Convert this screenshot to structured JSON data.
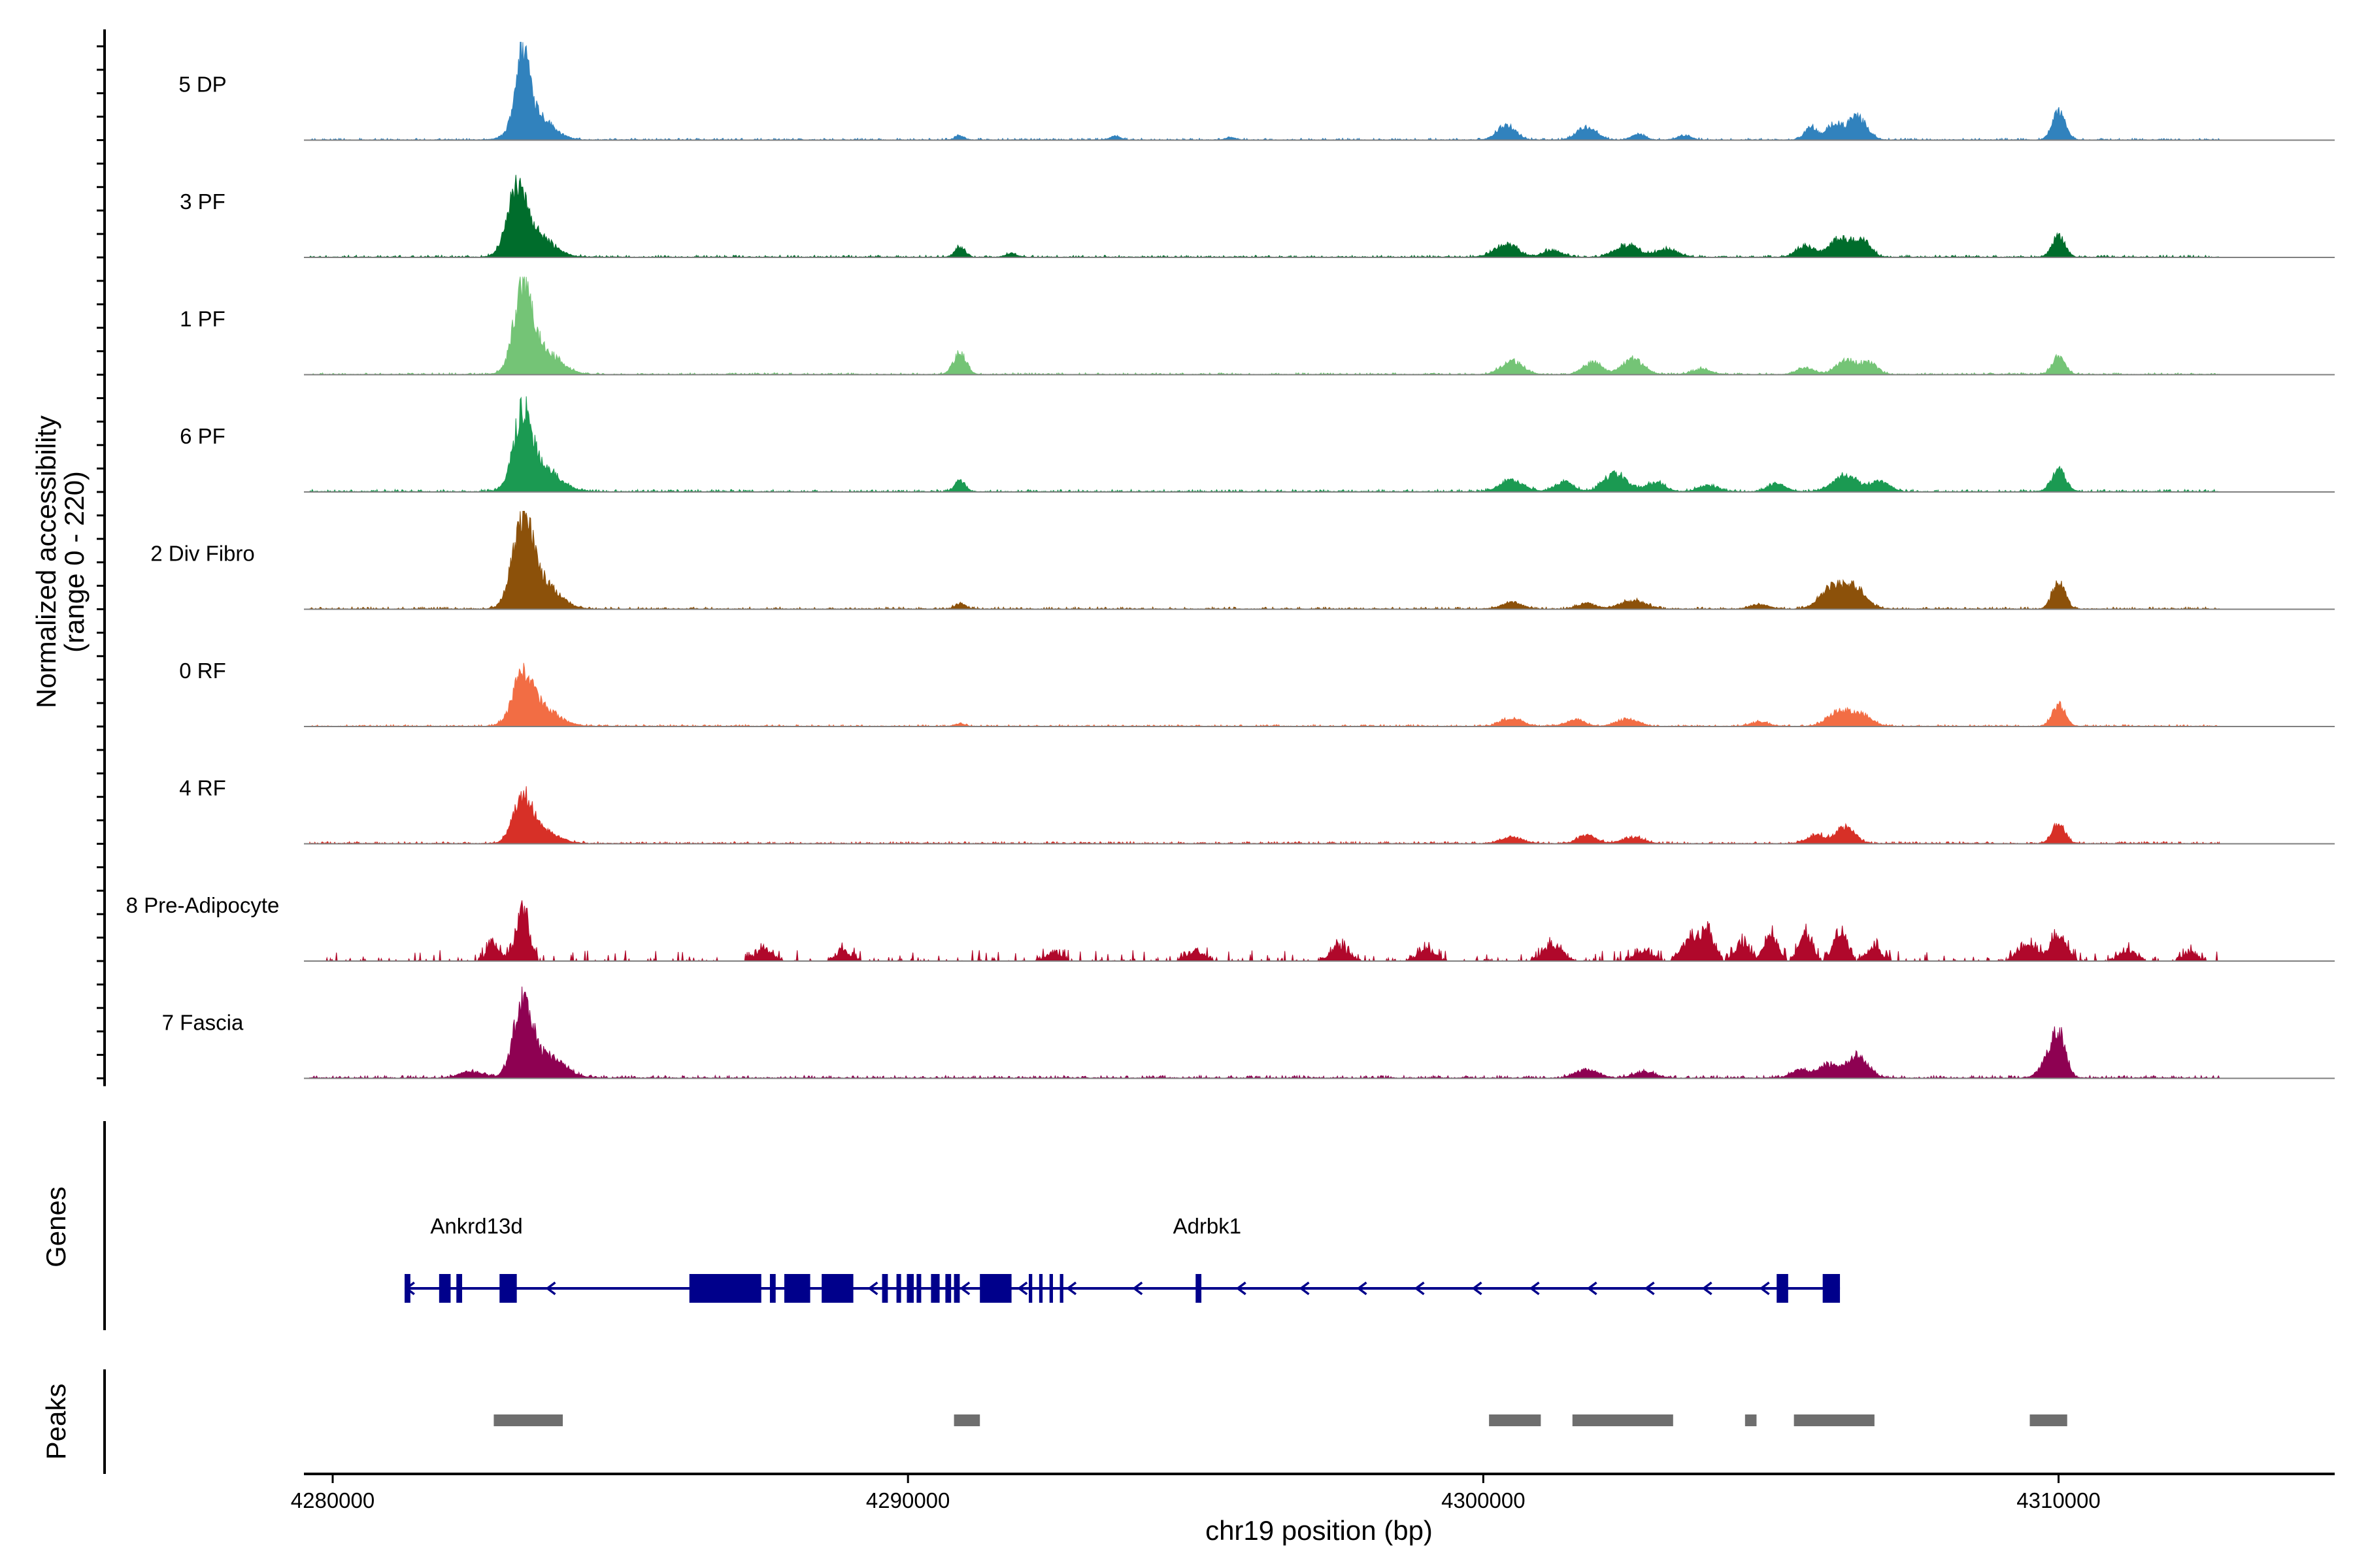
{
  "chart_data": {
    "type": "area",
    "title": "",
    "y_axis_label_line1": "Normalized accessibility",
    "y_axis_label_line2": "(range 0 - 220)",
    "y_range": [
      0,
      220
    ],
    "x_axis_label": "chr19 position (bp)",
    "x_range": [
      4279500,
      4314800
    ],
    "x_ticks": [
      {
        "value": 4280000,
        "label": "4280000"
      },
      {
        "value": 4290000,
        "label": "4290000"
      },
      {
        "value": 4300000,
        "label": "4300000"
      },
      {
        "value": 4310000,
        "label": "4310000"
      }
    ],
    "track_extent": [
      4279600,
      4312800
    ],
    "tracks": [
      {
        "name": "5 DP",
        "color": "#3182BD",
        "noise": 0.012,
        "peaks": [
          [
            4283300,
            160,
            120
          ],
          [
            4283500,
            60,
            280
          ],
          [
            4290900,
            9,
            80
          ],
          [
            4293600,
            8,
            90
          ],
          [
            4295600,
            6,
            80
          ],
          [
            4300400,
            32,
            160
          ],
          [
            4301800,
            28,
            170
          ],
          [
            4302700,
            12,
            120
          ],
          [
            4303500,
            10,
            120
          ],
          [
            4305700,
            28,
            110
          ],
          [
            4306100,
            36,
            120
          ],
          [
            4306500,
            52,
            160
          ],
          [
            4310000,
            62,
            110
          ]
        ]
      },
      {
        "name": "3 PF",
        "color": "#006D2C",
        "noise": 0.014,
        "peaks": [
          [
            4283200,
            135,
            160
          ],
          [
            4283500,
            50,
            300
          ],
          [
            4290900,
            22,
            90
          ],
          [
            4291800,
            8,
            100
          ],
          [
            4300400,
            28,
            200
          ],
          [
            4301200,
            16,
            150
          ],
          [
            4302500,
            26,
            200
          ],
          [
            4303200,
            18,
            180
          ],
          [
            4305600,
            24,
            150
          ],
          [
            4306200,
            42,
            180
          ],
          [
            4306600,
            34,
            140
          ],
          [
            4310000,
            46,
            110
          ]
        ]
      },
      {
        "name": "1 PF",
        "color": "#74C476",
        "noise": 0.012,
        "peaks": [
          [
            4283300,
            165,
            150
          ],
          [
            4283600,
            60,
            300
          ],
          [
            4290900,
            48,
            110
          ],
          [
            4300500,
            30,
            180
          ],
          [
            4301900,
            26,
            160
          ],
          [
            4302600,
            34,
            180
          ],
          [
            4303800,
            12,
            150
          ],
          [
            4305600,
            14,
            150
          ],
          [
            4306300,
            30,
            170
          ],
          [
            4306700,
            24,
            150
          ],
          [
            4310000,
            38,
            110
          ]
        ]
      },
      {
        "name": "6 PF",
        "color": "#1B9A52",
        "noise": 0.016,
        "peaks": [
          [
            4283300,
            155,
            150
          ],
          [
            4283600,
            55,
            300
          ],
          [
            4290900,
            24,
            90
          ],
          [
            4300500,
            26,
            200
          ],
          [
            4301400,
            22,
            160
          ],
          [
            4302300,
            38,
            200
          ],
          [
            4303000,
            20,
            160
          ],
          [
            4303900,
            14,
            160
          ],
          [
            4305100,
            18,
            150
          ],
          [
            4306300,
            34,
            220
          ],
          [
            4306900,
            22,
            160
          ],
          [
            4310000,
            48,
            120
          ]
        ]
      },
      {
        "name": "2 Div Fibro",
        "color": "#8C510A",
        "noise": 0.014,
        "peaks": [
          [
            4283300,
            170,
            170
          ],
          [
            4283600,
            60,
            300
          ],
          [
            4290900,
            12,
            90
          ],
          [
            4300500,
            14,
            180
          ],
          [
            4301800,
            12,
            160
          ],
          [
            4302600,
            18,
            220
          ],
          [
            4304800,
            10,
            160
          ],
          [
            4306100,
            50,
            220
          ],
          [
            4306500,
            38,
            180
          ],
          [
            4310000,
            62,
            110
          ]
        ]
      },
      {
        "name": "0 RF",
        "color": "#F26D44",
        "noise": 0.012,
        "peaks": [
          [
            4283300,
            95,
            170
          ],
          [
            4283600,
            40,
            300
          ],
          [
            4290900,
            6,
            80
          ],
          [
            4300500,
            18,
            180
          ],
          [
            4301600,
            14,
            160
          ],
          [
            4302500,
            16,
            180
          ],
          [
            4304800,
            10,
            150
          ],
          [
            4306200,
            34,
            200
          ],
          [
            4306600,
            24,
            160
          ],
          [
            4310000,
            48,
            110
          ]
        ]
      },
      {
        "name": "4 RF",
        "color": "#D73027",
        "noise": 0.014,
        "peaks": [
          [
            4283300,
            90,
            160
          ],
          [
            4283600,
            30,
            280
          ],
          [
            4300500,
            14,
            180
          ],
          [
            4301800,
            18,
            160
          ],
          [
            4302600,
            14,
            180
          ],
          [
            4305800,
            18,
            160
          ],
          [
            4306300,
            36,
            160
          ],
          [
            4310000,
            46,
            110
          ]
        ]
      },
      {
        "name": "8 Pre-Adipocyte",
        "color": "#B0082B",
        "noise": 0.07,
        "sparse": true,
        "peaks": [
          [
            4283300,
            108,
            110
          ],
          [
            4282800,
            34,
            110
          ],
          [
            4287500,
            22,
            130
          ],
          [
            4288900,
            16,
            120
          ],
          [
            4292500,
            12,
            120
          ],
          [
            4295000,
            18,
            130
          ],
          [
            4297500,
            28,
            140
          ],
          [
            4299000,
            20,
            140
          ],
          [
            4301200,
            30,
            150
          ],
          [
            4302800,
            20,
            130
          ],
          [
            4303600,
            44,
            140
          ],
          [
            4303900,
            60,
            110
          ],
          [
            4304500,
            34,
            120
          ],
          [
            4305000,
            50,
            110
          ],
          [
            4305600,
            54,
            110
          ],
          [
            4306200,
            58,
            110
          ],
          [
            4306800,
            26,
            120
          ],
          [
            4309500,
            30,
            150
          ],
          [
            4310000,
            48,
            130
          ],
          [
            4311200,
            20,
            130
          ],
          [
            4312300,
            14,
            110
          ]
        ]
      },
      {
        "name": "7 Fascia",
        "color": "#8E0152",
        "noise": 0.018,
        "peaks": [
          [
            4283300,
            150,
            160
          ],
          [
            4283700,
            48,
            300
          ],
          [
            4282400,
            14,
            200
          ],
          [
            4301800,
            18,
            200
          ],
          [
            4302800,
            14,
            180
          ],
          [
            4305500,
            18,
            150
          ],
          [
            4306000,
            28,
            180
          ],
          [
            4306500,
            48,
            180
          ],
          [
            4309800,
            30,
            140
          ],
          [
            4310000,
            96,
            120
          ]
        ]
      }
    ],
    "genes_panel": {
      "label": "Genes",
      "strand_line": [
        4281250,
        4306200
      ],
      "genes": [
        {
          "name": "Ankrd13d",
          "label_x": 4282500,
          "exons": [
            [
              4281250,
              4281350
            ],
            [
              4281850,
              4282050
            ],
            [
              4282150,
              4282250
            ],
            [
              4282900,
              4283200
            ]
          ]
        },
        {
          "name": "Adrbk1",
          "label_x": 4295200,
          "exons": [
            [
              4286200,
              4287450
            ],
            [
              4287600,
              4287700
            ],
            [
              4287850,
              4288300
            ],
            [
              4288500,
              4289050
            ],
            [
              4289550,
              4289650
            ],
            [
              4289800,
              4289880
            ],
            [
              4289980,
              4290100
            ],
            [
              4290150,
              4290230
            ],
            [
              4290400,
              4290550
            ],
            [
              4290650,
              4290750
            ],
            [
              4290800,
              4290900
            ],
            [
              4291250,
              4291800
            ],
            [
              4292100,
              4292160
            ],
            [
              4292280,
              4292340
            ],
            [
              4292460,
              4292520
            ],
            [
              4292640,
              4292700
            ],
            [
              4295000,
              4295100
            ],
            [
              4305100,
              4305300
            ],
            [
              4305900,
              4306200
            ]
          ]
        }
      ],
      "arrows": [
        4281350,
        4283800,
        4289400,
        4291000,
        4292000,
        4292850,
        4294000,
        4295800,
        4296900,
        4297900,
        4298900,
        4299900,
        4300900,
        4301900,
        4302900,
        4303900,
        4304900
      ]
    },
    "peaks_panel": {
      "label": "Peaks",
      "regions": [
        [
          4282800,
          4284000
        ],
        [
          4290800,
          4291250
        ],
        [
          4300100,
          4301000
        ],
        [
          4301550,
          4303300
        ],
        [
          4304550,
          4304750
        ],
        [
          4305400,
          4306800
        ],
        [
          4309500,
          4310150
        ]
      ]
    },
    "colors": {
      "gene": "#00008B",
      "peak": "#6E6E6E",
      "baseline": "#7F7F7F",
      "axis": "#000000"
    }
  }
}
